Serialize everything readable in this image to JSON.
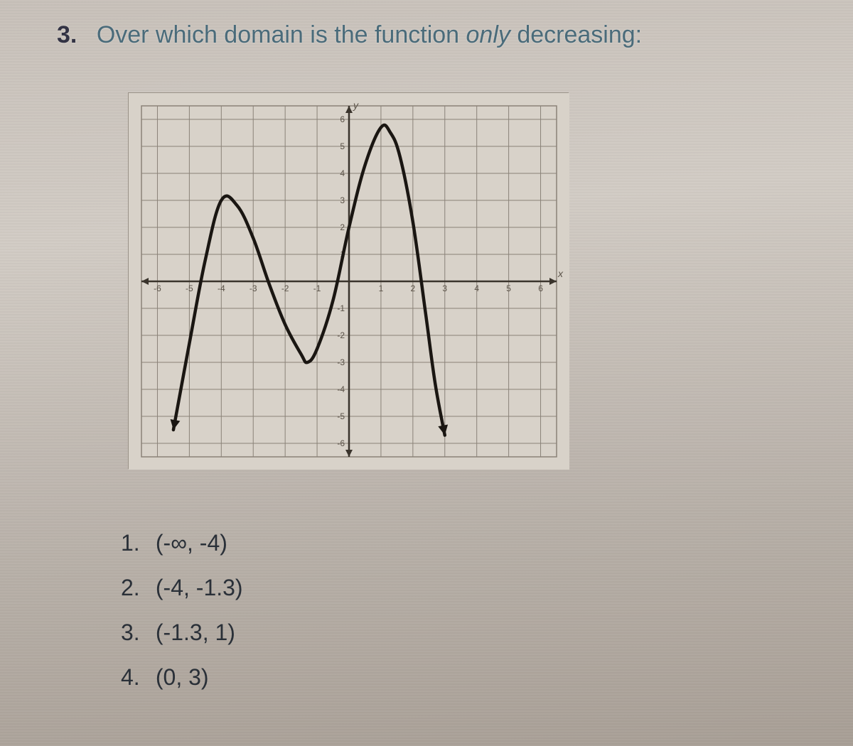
{
  "question": {
    "number": "3.",
    "prefix": "Over which domain is the function ",
    "emph": "only",
    "suffix": " decreasing:"
  },
  "chart": {
    "type": "line",
    "xlim": [
      -6.5,
      6.5
    ],
    "ylim": [
      -6.5,
      6.5
    ],
    "xtick_step": 1,
    "ytick_step": 1,
    "xlabel": "x",
    "ylabel": "y",
    "x_tick_labels": [
      "-6",
      "-5",
      "-4",
      "-3",
      "-2",
      "-1",
      "1",
      "2",
      "3",
      "4",
      "5",
      "6"
    ],
    "y_tick_labels": [
      "-6",
      "-5",
      "-4",
      "-3",
      "-2",
      "-1",
      "1",
      "2",
      "3",
      "4",
      "5",
      "6"
    ],
    "background_color": "#d8d2c9",
    "grid_color": "#8a8278",
    "axis_color": "#3a342c",
    "curve_color": "#1a1612",
    "curve_width": 4.5,
    "tick_label_fontsize": 12,
    "tick_label_color": "#5a5248",
    "curve_points": [
      [
        -5.5,
        -5.5
      ],
      [
        -5.0,
        -2.3
      ],
      [
        -4.5,
        0.8
      ],
      [
        -4.0,
        3.0
      ],
      [
        -3.5,
        2.8
      ],
      [
        -3.0,
        1.6
      ],
      [
        -2.5,
        -0.1
      ],
      [
        -2.0,
        -1.6
      ],
      [
        -1.5,
        -2.7
      ],
      [
        -1.3,
        -3.0
      ],
      [
        -1.0,
        -2.5
      ],
      [
        -0.5,
        -0.7
      ],
      [
        0.0,
        2.0
      ],
      [
        0.5,
        4.3
      ],
      [
        1.0,
        5.7
      ],
      [
        1.3,
        5.5
      ],
      [
        1.6,
        4.6
      ],
      [
        2.0,
        2.2
      ],
      [
        2.4,
        -1.2
      ],
      [
        2.7,
        -3.8
      ],
      [
        3.0,
        -5.7
      ]
    ],
    "arrows": {
      "start": true,
      "end": true
    }
  },
  "answers": [
    {
      "n": "1.",
      "text": "(-∞, -4)"
    },
    {
      "n": "2.",
      "text": "(-4, -1.3)"
    },
    {
      "n": "3.",
      "text": "(-1.3, 1)"
    },
    {
      "n": "4.",
      "text": "(0, 3)"
    }
  ]
}
